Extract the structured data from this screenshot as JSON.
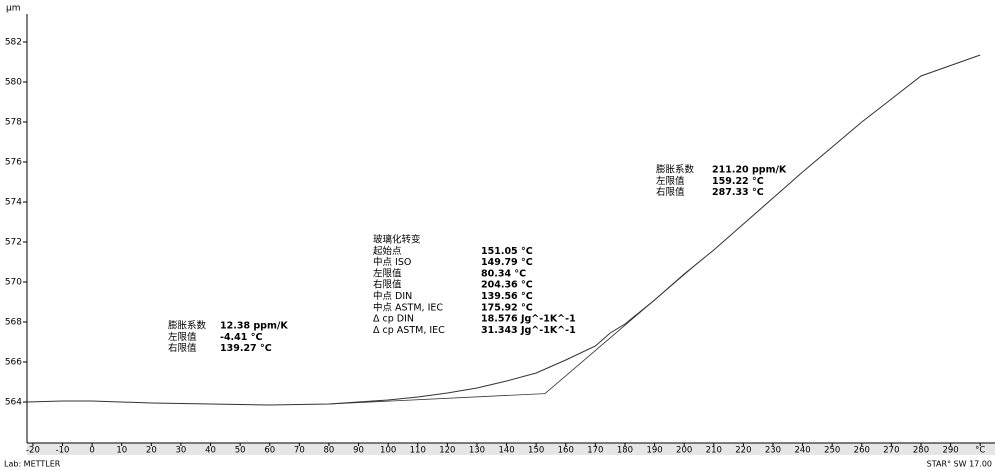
{
  "chart_data": {
    "type": "line",
    "y_unit": "µm",
    "xlim": [
      -22,
      305
    ],
    "ylim": [
      561.95,
      583
    ],
    "xticks": [
      -20,
      -10,
      0,
      10,
      20,
      30,
      40,
      50,
      60,
      70,
      80,
      90,
      100,
      110,
      120,
      130,
      140,
      150,
      160,
      170,
      180,
      190,
      200,
      210,
      220,
      230,
      240,
      250,
      260,
      270,
      280,
      290,
      {
        "value": 300,
        "label": "°C"
      }
    ],
    "yticks": [
      564,
      566,
      568,
      570,
      572,
      574,
      576,
      578,
      580,
      582
    ],
    "series": [
      {
        "color": "#333333",
        "x": [
          -22,
          -10,
          0,
          20,
          40,
          60,
          80,
          100,
          110,
          120,
          130,
          140,
          150,
          160,
          170,
          175,
          180,
          190,
          200,
          205,
          210,
          220,
          240,
          260,
          280,
          300
        ],
        "values": [
          564.0,
          564.05,
          564.05,
          563.95,
          563.9,
          563.85,
          563.9,
          564.1,
          564.25,
          564.45,
          564.7,
          565.05,
          565.45,
          566.1,
          566.8,
          567.45,
          567.9,
          569.1,
          570.4,
          571.0,
          571.6,
          572.9,
          575.5,
          578.0,
          580.3,
          581.35
        ]
      }
    ],
    "tangents": [
      {
        "x": [
          80,
          153
        ],
        "values": [
          563.9,
          564.42
        ]
      },
      {
        "x": [
          153,
          205
        ],
        "values": [
          564.42,
          571.0
        ]
      }
    ],
    "annotations": [
      {
        "rows": [
          [
            "膨胀系数",
            "12.38 ppm/K"
          ],
          [
            "左限值",
            "-4.41 °C"
          ],
          [
            "右限值",
            "139.27 °C"
          ]
        ]
      },
      {
        "title": "玻璃化转变",
        "rows": [
          [
            "起始点",
            "151.05 °C"
          ],
          [
            "中点 ISO",
            "149.79 °C"
          ],
          [
            "左限值",
            "80.34 °C"
          ],
          [
            "右限值",
            "204.36 °C"
          ],
          [
            "中点 DIN",
            "139.56 °C"
          ],
          [
            "中点 ASTM, IEC",
            "175.92 °C"
          ],
          [
            "Δ cp DIN",
            "18.576 Jg^-1K^-1"
          ],
          [
            "Δ cp ASTM, IEC",
            "31.343 Jg^-1K^-1"
          ]
        ]
      },
      {
        "rows": [
          [
            "膨胀系数",
            "211.20 ppm/K"
          ],
          [
            "左限值",
            "159.22 °C"
          ],
          [
            "右限值",
            "287.33 °C"
          ]
        ]
      }
    ],
    "footer_left": "Lab: METTLER",
    "footer_right": "STAR° SW 17.00"
  }
}
